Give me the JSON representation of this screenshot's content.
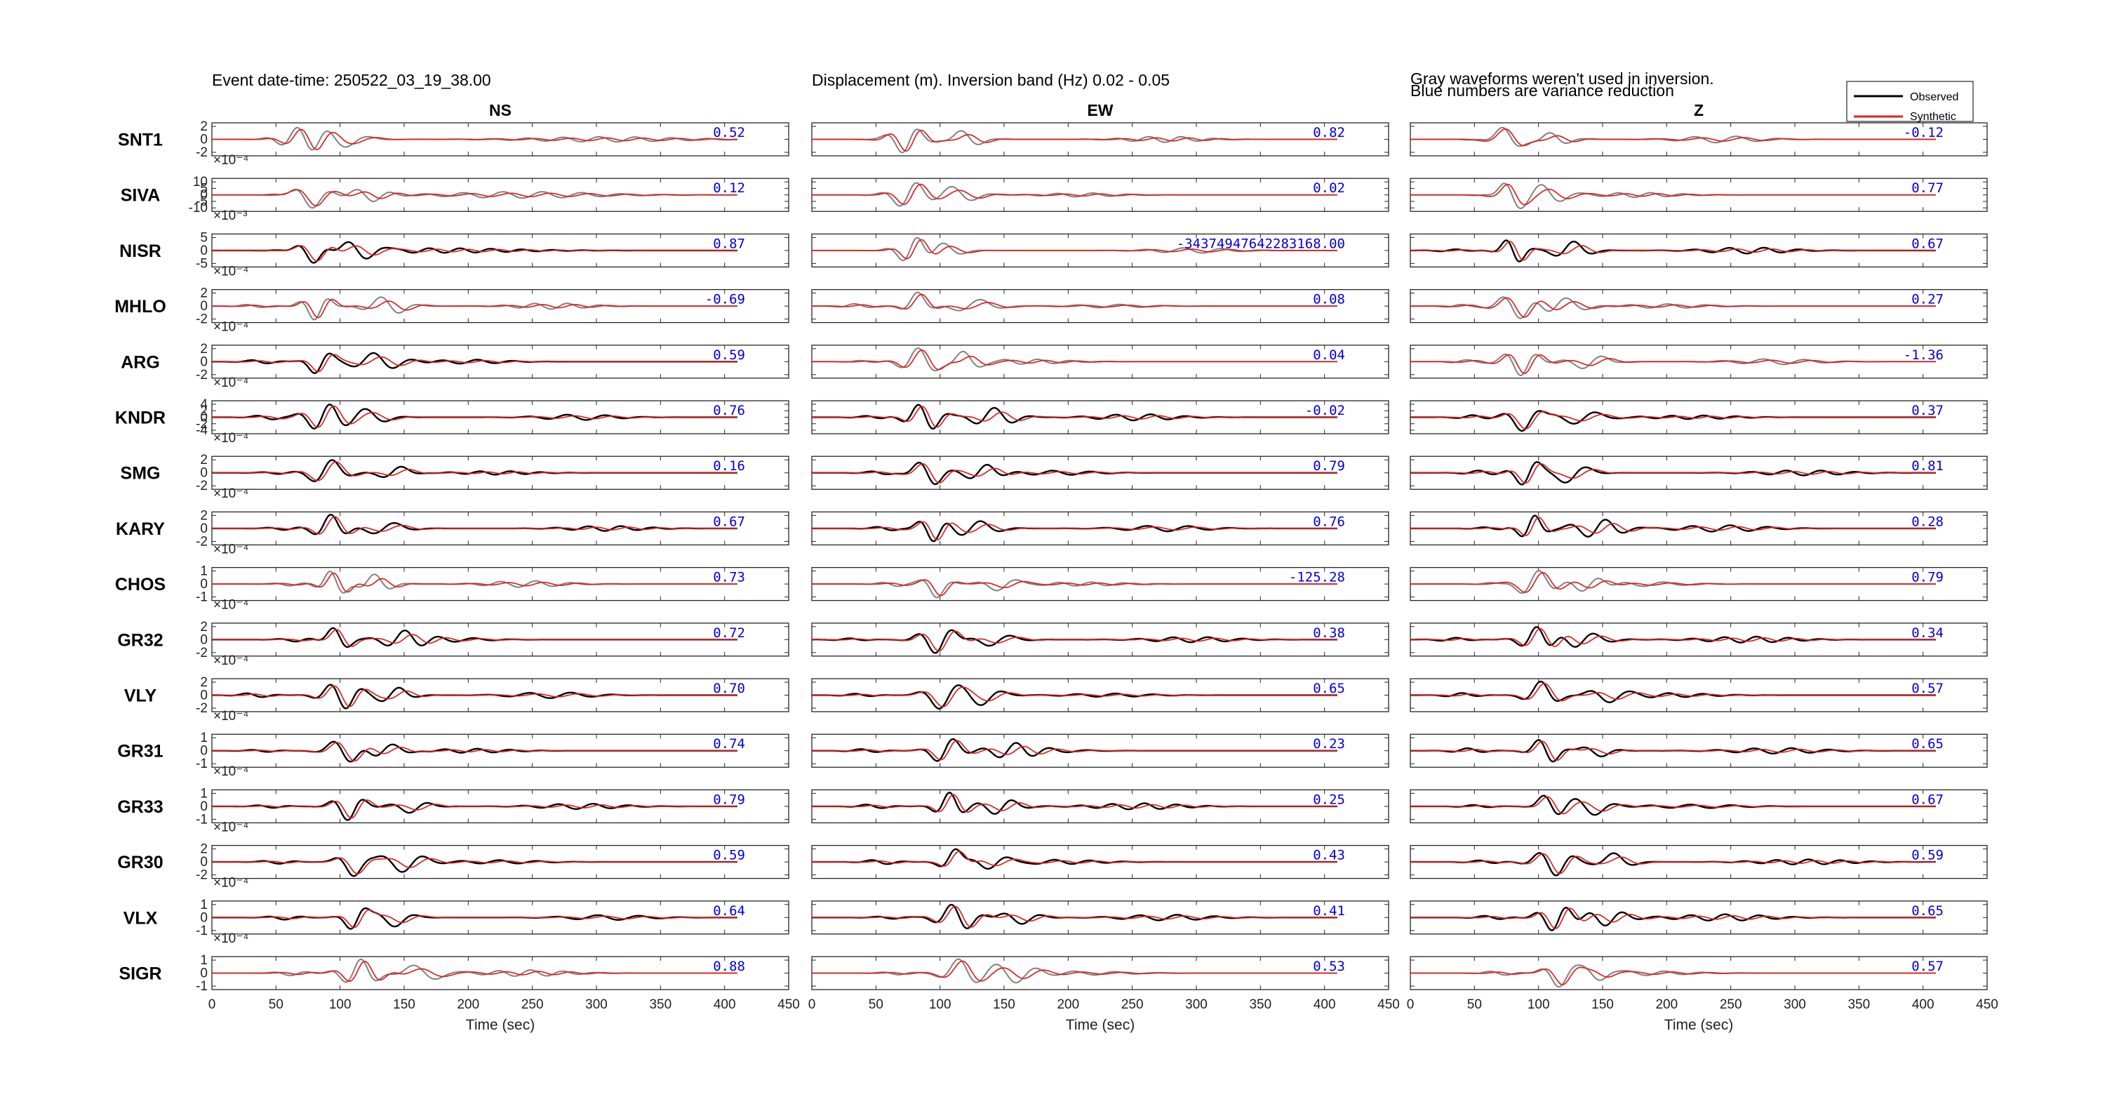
{
  "header": {
    "event": "Event date-time: 250522_03_19_38.00",
    "band": "Displacement (m).  Inversion band (Hz)  0.02 - 0.05",
    "note1": "Gray waveforms weren't used in inversion.",
    "note2": "Blue numbers are variance reduction"
  },
  "legend": {
    "observed": "Observed",
    "synthetic": "Synthetic"
  },
  "colors": {
    "observed": "#000000",
    "synthetic": "#e0201e",
    "unused": "#808080",
    "vr": "#0000d8"
  },
  "chart_data": {
    "type": "line",
    "xlabel": "Time (sec)",
    "xlim": [
      0,
      450
    ],
    "xticks": [
      "0",
      "50",
      "100",
      "150",
      "200",
      "250",
      "300",
      "350",
      "400",
      "450"
    ],
    "columns": [
      "NS",
      "EW",
      "Z"
    ],
    "stations": [
      {
        "name": "SNT1",
        "exp": "×10⁻⁴",
        "yticks": [
          "2",
          "0",
          "-2"
        ],
        "vr": [
          "0.52",
          "0.82",
          "-0.12"
        ],
        "used": [
          false,
          false,
          false
        ]
      },
      {
        "name": "SIVA",
        "exp": "×10⁻³",
        "yticks": [
          "10",
          "5",
          "0",
          "-5",
          "-10"
        ],
        "vr": [
          "0.12",
          "0.02",
          "0.77"
        ],
        "used": [
          false,
          false,
          false
        ]
      },
      {
        "name": "NISR",
        "exp": "×10⁻⁴",
        "yticks": [
          "5",
          "0",
          "-5"
        ],
        "vr": [
          "0.87",
          "-34374947642283168.00",
          "0.67"
        ],
        "used": [
          true,
          false,
          true
        ]
      },
      {
        "name": "MHLO",
        "exp": "×10⁻⁴",
        "yticks": [
          "2",
          "0",
          "-2"
        ],
        "vr": [
          "-0.69",
          "0.08",
          "0.27"
        ],
        "used": [
          false,
          false,
          false
        ]
      },
      {
        "name": "ARG",
        "exp": "×10⁻⁴",
        "yticks": [
          "2",
          "0",
          "-2"
        ],
        "vr": [
          "0.59",
          "0.04",
          "-1.36"
        ],
        "used": [
          true,
          false,
          false
        ]
      },
      {
        "name": "KNDR",
        "exp": "×10⁻⁴",
        "yticks": [
          "4",
          "2",
          "0",
          "-2",
          "-4"
        ],
        "vr": [
          "0.76",
          "-0.02",
          "0.37"
        ],
        "used": [
          true,
          true,
          true
        ]
      },
      {
        "name": "SMG",
        "exp": "×10⁻⁴",
        "yticks": [
          "2",
          "0",
          "-2"
        ],
        "vr": [
          "0.16",
          "0.79",
          "0.81"
        ],
        "used": [
          true,
          true,
          true
        ]
      },
      {
        "name": "KARY",
        "exp": "×10⁻⁴",
        "yticks": [
          "2",
          "0",
          "-2"
        ],
        "vr": [
          "0.67",
          "0.76",
          "0.28"
        ],
        "used": [
          true,
          true,
          true
        ]
      },
      {
        "name": "CHOS",
        "exp": "×10⁻⁴",
        "yticks": [
          "1",
          "0",
          "-1"
        ],
        "vr": [
          "0.73",
          "-125.28",
          "0.79"
        ],
        "used": [
          false,
          false,
          false
        ]
      },
      {
        "name": "GR32",
        "exp": "×10⁻⁴",
        "yticks": [
          "2",
          "0",
          "-2"
        ],
        "vr": [
          "0.72",
          "0.38",
          "0.34"
        ],
        "used": [
          true,
          true,
          true
        ]
      },
      {
        "name": "VLY",
        "exp": "×10⁻⁴",
        "yticks": [
          "2",
          "0",
          "-2"
        ],
        "vr": [
          "0.70",
          "0.65",
          "0.57"
        ],
        "used": [
          true,
          true,
          true
        ]
      },
      {
        "name": "GR31",
        "exp": "×10⁻⁴",
        "yticks": [
          "1",
          "0",
          "-1"
        ],
        "vr": [
          "0.74",
          "0.23",
          "0.65"
        ],
        "used": [
          true,
          true,
          true
        ]
      },
      {
        "name": "GR33",
        "exp": "×10⁻⁴",
        "yticks": [
          "1",
          "0",
          "-1"
        ],
        "vr": [
          "0.79",
          "0.25",
          "0.67"
        ],
        "used": [
          true,
          true,
          true
        ]
      },
      {
        "name": "GR30",
        "exp": "×10⁻⁴",
        "yticks": [
          "2",
          "0",
          "-2"
        ],
        "vr": [
          "0.59",
          "0.43",
          "0.59"
        ],
        "used": [
          true,
          true,
          true
        ]
      },
      {
        "name": "VLX",
        "exp": "×10⁻⁴",
        "yticks": [
          "1",
          "0",
          "-1"
        ],
        "vr": [
          "0.64",
          "0.41",
          "0.65"
        ],
        "used": [
          true,
          true,
          true
        ]
      },
      {
        "name": "SIGR",
        "exp": "",
        "yticks": [
          "1",
          "0",
          "-1"
        ],
        "vr": [
          "0.88",
          "0.53",
          "0.57"
        ],
        "used": [
          false,
          false,
          false
        ]
      }
    ]
  }
}
